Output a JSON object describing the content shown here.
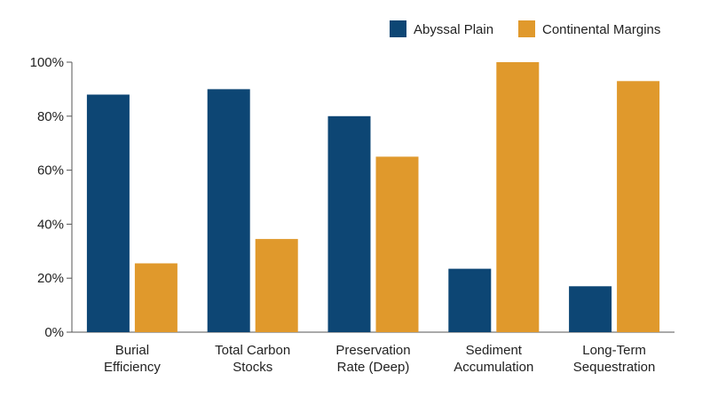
{
  "chart_data": {
    "type": "bar",
    "categories": [
      [
        "Burial",
        "Efficiency"
      ],
      [
        "Total Carbon",
        "Stocks"
      ],
      [
        "Preservation",
        "Rate (Deep)"
      ],
      [
        "Sediment",
        "Accumulation"
      ],
      [
        "Long-Term",
        "Sequestration"
      ]
    ],
    "series": [
      {
        "name": "Abyssal Plain",
        "color": "#0d4674",
        "values": [
          88,
          90,
          80,
          23.5,
          17
        ]
      },
      {
        "name": "Continental Margins",
        "color": "#e0992c",
        "values": [
          25.5,
          34.5,
          65,
          100,
          93
        ]
      }
    ],
    "ylim": [
      0,
      100
    ],
    "yticks": [
      0,
      20,
      40,
      60,
      80,
      100
    ],
    "ytick_labels": [
      "0%",
      "20%",
      "40%",
      "60%",
      "80%",
      "100%"
    ],
    "legend_position": "top-right",
    "grid": false,
    "title": "",
    "xlabel": "",
    "ylabel": ""
  }
}
